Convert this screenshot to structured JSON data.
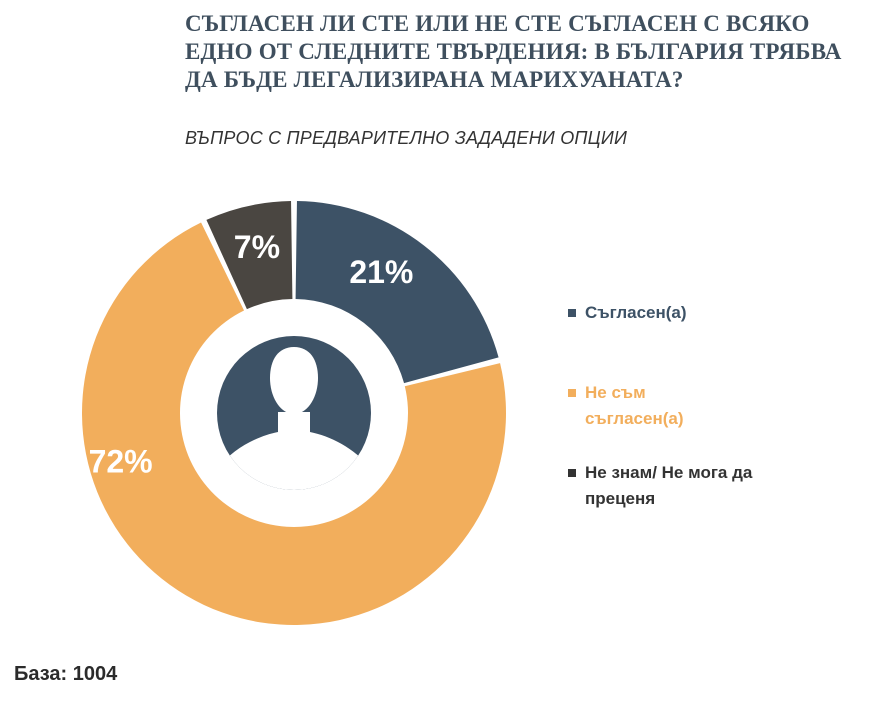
{
  "header": {
    "title": "СЪГЛАСЕН ЛИ СТЕ ИЛИ НЕ СТЕ СЪГЛАСЕН С ВСЯКО ЕДНО ОТ СЛЕДНИТЕ ТВЪРДЕНИЯ: В БЪЛГАРИЯ ТРЯБВА ДА БЪДЕ ЛЕГАЛИЗИРАНА МАРИХУАНАТА?",
    "subtitle": "ВЪПРОС С ПРЕДВАРИТЕЛНО ЗАДАДЕНИ ОПЦИИ"
  },
  "chart_data": {
    "type": "pie",
    "variant": "donut",
    "categories": [
      "Съгласен(а)",
      "Не съм съгласен(а)",
      "Не знам/ Не мога да преценя"
    ],
    "values": [
      21,
      72,
      7
    ],
    "data_labels": [
      "21%",
      "72%",
      "7%"
    ],
    "colors": [
      "#3d5266",
      "#f2ae5c",
      "#4a4641"
    ],
    "legend_colors": [
      "#3d5266",
      "#f2ae5c",
      "#333333"
    ],
    "legend_placement": "right",
    "center_icon": "person-silhouette-icon",
    "center_icon_color": "#3d5266"
  },
  "footer": {
    "base_label": "База: 1004"
  }
}
